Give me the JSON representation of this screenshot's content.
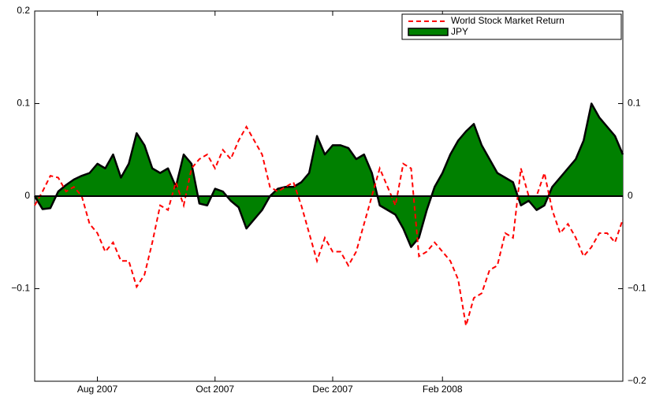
{
  "chart_data": {
    "type": "line-area",
    "categories": [
      null,
      null,
      null,
      null,
      null,
      null,
      null,
      null,
      "Aug 2007",
      null,
      null,
      null,
      null,
      null,
      null,
      null,
      null,
      null,
      null,
      null,
      null,
      null,
      null,
      "Oct 2007",
      null,
      null,
      null,
      null,
      null,
      null,
      null,
      null,
      null,
      null,
      null,
      null,
      null,
      null,
      "Dec 2007",
      null,
      null,
      null,
      null,
      null,
      null,
      null,
      null,
      null,
      null,
      null,
      null,
      null,
      "Feb 2008",
      null,
      null,
      null,
      null,
      null,
      null,
      null,
      null,
      null,
      null,
      null,
      null,
      null,
      null,
      null,
      null,
      null,
      null,
      null,
      null,
      null,
      null,
      null
    ],
    "series": [
      {
        "name": "World Stock Market Return",
        "color": "#ff0000",
        "style": "dashed",
        "values": [
          -0.01,
          0.005,
          0.022,
          0.02,
          0.005,
          0.01,
          0.0,
          -0.03,
          -0.04,
          -0.06,
          -0.05,
          -0.07,
          -0.07,
          -0.098,
          -0.085,
          -0.05,
          -0.01,
          -0.015,
          0.015,
          -0.01,
          0.03,
          0.04,
          0.045,
          0.03,
          0.05,
          0.04,
          0.06,
          0.075,
          0.06,
          0.045,
          0.01,
          0.005,
          0.01,
          0.015,
          -0.01,
          -0.04,
          -0.07,
          -0.045,
          -0.06,
          -0.06,
          -0.075,
          -0.06,
          -0.03,
          0.0,
          0.03,
          0.01,
          -0.01,
          0.035,
          0.03,
          -0.065,
          -0.06,
          -0.05,
          -0.06,
          -0.07,
          -0.09,
          -0.14,
          -0.11,
          -0.105,
          -0.08,
          -0.075,
          -0.04,
          -0.045,
          0.03,
          0.0,
          0.0,
          0.025,
          -0.015,
          -0.04,
          -0.03,
          -0.045,
          -0.065,
          -0.055,
          -0.04,
          -0.04,
          -0.05,
          -0.025
        ]
      },
      {
        "name": "JPY",
        "color": "#008000",
        "style": "area",
        "values": [
          0,
          -0.014,
          -0.013,
          0.005,
          0.012,
          0.018,
          0.022,
          0.025,
          0.035,
          0.03,
          0.045,
          0.02,
          0.035,
          0.068,
          0.055,
          0.03,
          0.025,
          0.03,
          0.01,
          0.045,
          0.035,
          -0.008,
          -0.01,
          0.008,
          0.005,
          -0.005,
          -0.012,
          -0.035,
          -0.025,
          -0.015,
          0.0,
          0.008,
          0.01,
          0.01,
          0.015,
          0.025,
          0.065,
          0.045,
          0.055,
          0.055,
          0.052,
          0.04,
          0.045,
          0.025,
          -0.01,
          -0.015,
          -0.02,
          -0.035,
          -0.055,
          -0.045,
          -0.015,
          0.01,
          0.025,
          0.045,
          0.06,
          0.07,
          0.078,
          0.055,
          0.04,
          0.025,
          0.02,
          0.015,
          -0.01,
          -0.005,
          -0.015,
          -0.01,
          0.01,
          0.02,
          0.03,
          0.04,
          0.06,
          0.1,
          0.085,
          0.075,
          0.065,
          0.045
        ]
      }
    ],
    "ylim": [
      -0.2,
      0.2
    ],
    "yticks": [
      0.2,
      0.1,
      0,
      {
        "value": -0.1,
        "label": "−0.1"
      }
    ],
    "y2lim": [
      -0.2,
      0.2
    ],
    "y2ticks": [
      0.1,
      0,
      {
        "value": -0.1,
        "label": "−0.1"
      },
      {
        "value": -0.2,
        "label": "−0.2"
      }
    ],
    "legend": "top-right"
  }
}
